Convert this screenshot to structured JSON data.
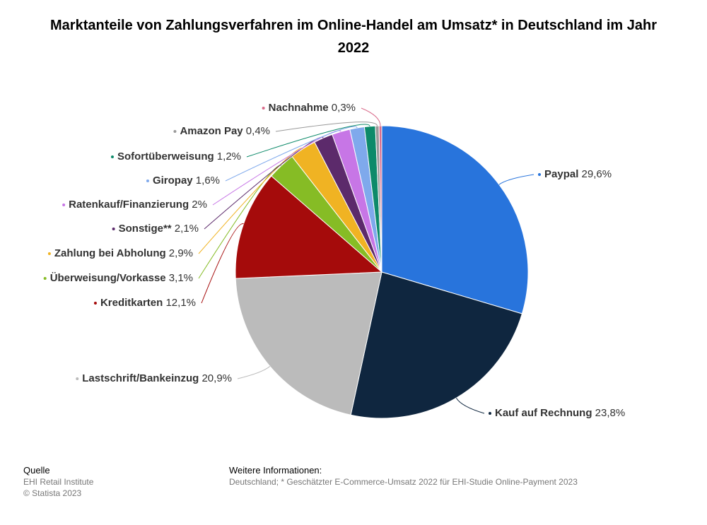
{
  "chart_data": {
    "type": "pie",
    "title": "Marktanteile von Zahlungsverfahren im Online-Handel am Umsatz* in Deutschland im Jahr 2022",
    "slices": [
      {
        "label": "Paypal",
        "value": 29.6,
        "display": "29,6%",
        "color": "#2874dc"
      },
      {
        "label": "Kauf auf Rechnung",
        "value": 23.8,
        "display": "23,8%",
        "color": "#0f263f"
      },
      {
        "label": "Lastschrift/Bankeinzug",
        "value": 20.9,
        "display": "20,9%",
        "color": "#bbbbbb"
      },
      {
        "label": "Kreditkarten",
        "value": 12.1,
        "display": "12,1%",
        "color": "#a50b0b"
      },
      {
        "label": "Überweisung/Vorkasse",
        "value": 3.1,
        "display": "3,1%",
        "color": "#86bc25"
      },
      {
        "label": "Zahlung bei Abholung",
        "value": 2.9,
        "display": "2,9%",
        "color": "#f0b323"
      },
      {
        "label": "Sonstige**",
        "value": 2.1,
        "display": "2,1%",
        "color": "#5c2a6b"
      },
      {
        "label": "Ratenkauf/Finanzierung",
        "value": 2.0,
        "display": "2%",
        "color": "#c776e6"
      },
      {
        "label": "Giropay",
        "value": 1.6,
        "display": "1,6%",
        "color": "#7fa9ec"
      },
      {
        "label": "Sofortüberweisung",
        "value": 1.2,
        "display": "1,2%",
        "color": "#0d8a6a"
      },
      {
        "label": "Amazon Pay",
        "value": 0.4,
        "display": "0,4%",
        "color": "#999999"
      },
      {
        "label": "Nachnahme",
        "value": 0.3,
        "display": "0,3%",
        "color": "#d96b8a"
      }
    ]
  },
  "footer": {
    "source_heading": "Quelle",
    "source_name": "EHI Retail Institute",
    "copyright": "© Statista 2023",
    "info_heading": "Weitere Informationen:",
    "info_text": "Deutschland; * Geschätzter E-Commerce-Umsatz 2022 für EHI-Studie Online-Payment 2023"
  }
}
